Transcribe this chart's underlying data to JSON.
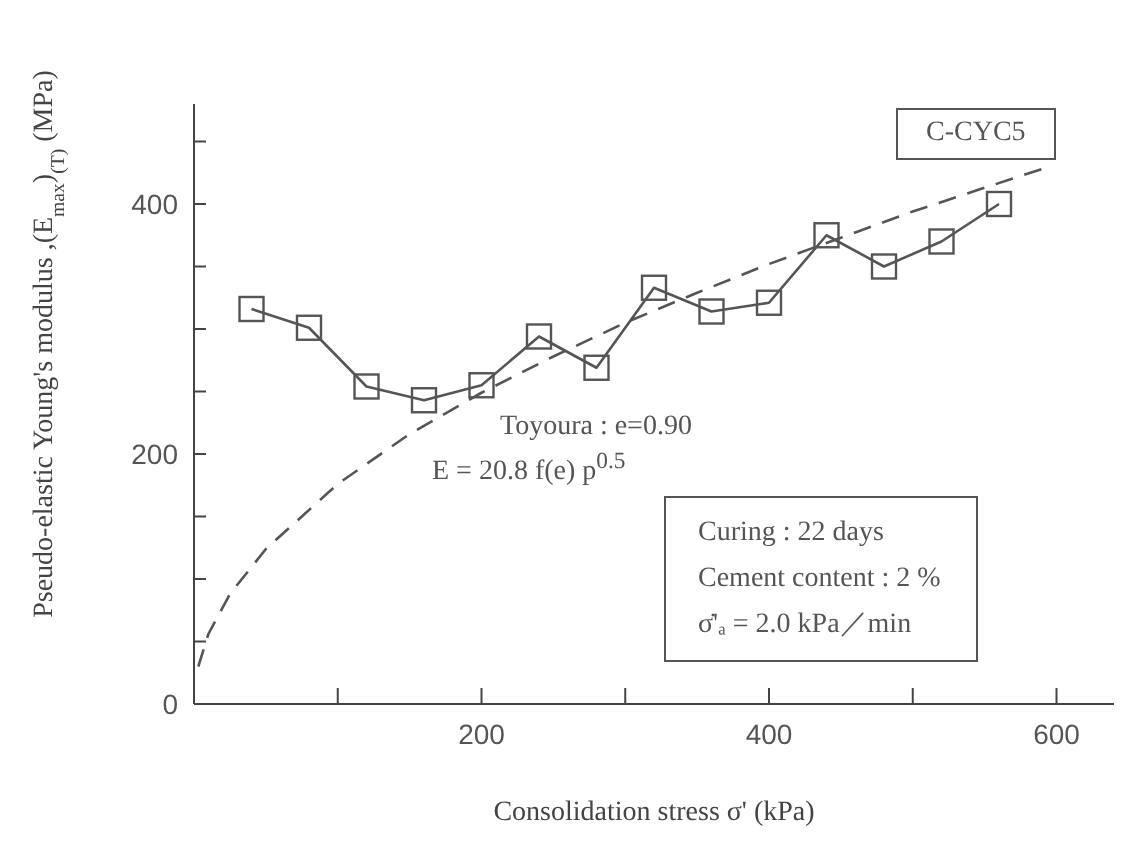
{
  "chart_data": {
    "type": "line",
    "xlabel": "Consolidation stress    σ' (kPa)",
    "ylabel": "Pseudo-elastic Young's modulus ,(E$_{max}$)$_{(T)}$ (MPa)",
    "xlim": [
      0,
      640
    ],
    "xticks": [
      {
        "value": 100,
        "label": null
      },
      200,
      {
        "value": 300,
        "label": null
      },
      400,
      {
        "value": 500,
        "label": null
      },
      600
    ],
    "ylim": [
      0,
      480
    ],
    "yticks": [
      0,
      {
        "value": 50,
        "label": null
      },
      {
        "value": 100,
        "label": null
      },
      {
        "value": 150,
        "label": null
      },
      200,
      {
        "value": 250,
        "label": null
      },
      {
        "value": 300,
        "label": null
      },
      {
        "value": 350,
        "label": null
      },
      400,
      {
        "value": 450,
        "label": null
      }
    ],
    "series": [
      {
        "color": "#555555",
        "marker": "square",
        "line_style": "solid",
        "x": [
          40,
          80,
          120,
          160,
          200,
          240,
          280,
          320,
          360,
          400,
          440,
          480,
          520,
          560
        ],
        "values": [
          316,
          301,
          254,
          243,
          255,
          294,
          269,
          333,
          314,
          321,
          375,
          350,
          370,
          400
        ]
      },
      {
        "color": "#555555",
        "marker": "none",
        "line_style": "dashed",
        "x": [
          3,
          10,
          25,
          50,
          100,
          150,
          200,
          250,
          300,
          350,
          400,
          450,
          500,
          550,
          590
        ],
        "values": [
          30,
          56,
          88,
          124,
          176,
          216,
          249,
          278,
          305,
          329,
          352,
          373,
          394,
          413,
          428
        ]
      }
    ],
    "annotations": [
      "C-CYC5",
      "Toyoura : e=0.90",
      "E = 20.8 f(e) p$^{0.5}$",
      "Curing : 22 days",
      "Cement content : 2 %",
      "σ̇'ₐ = 2.0 kPa／min"
    ]
  }
}
